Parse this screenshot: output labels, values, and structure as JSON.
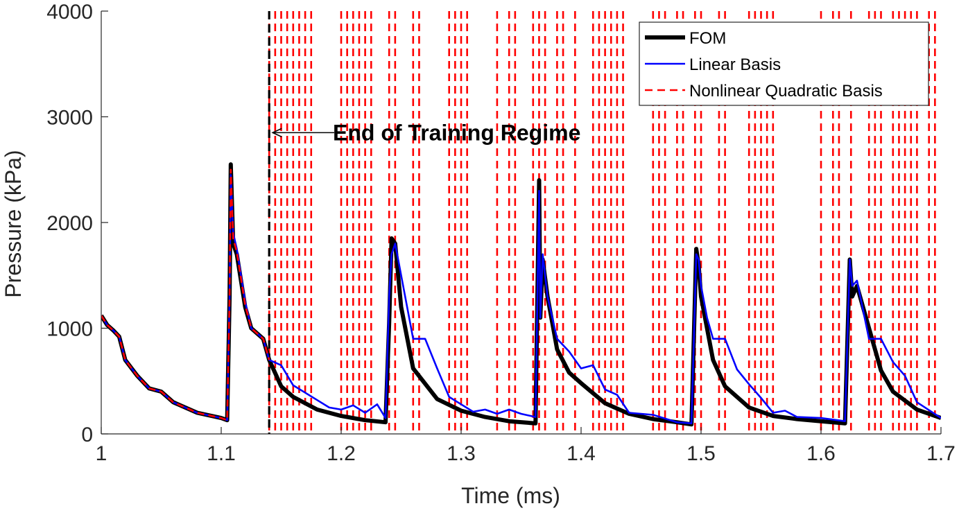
{
  "chart_data": {
    "type": "line",
    "xlabel": "Time (ms)",
    "ylabel": "Pressure (kPa)",
    "xlim": [
      1,
      1.7
    ],
    "ylim": [
      0,
      4000
    ],
    "x_ticks": [
      1,
      1.1,
      1.2,
      1.3,
      1.4,
      1.5,
      1.6,
      1.7
    ],
    "x_tick_labels": [
      "1",
      "1.1",
      "1.2",
      "1.3",
      "1.4",
      "1.5",
      "1.6",
      "1.7"
    ],
    "y_ticks": [
      0,
      1000,
      2000,
      3000,
      4000
    ],
    "y_tick_labels": [
      "0",
      "1000",
      "2000",
      "3000",
      "4000"
    ],
    "grid": false,
    "legend_position": "top-right",
    "series": [
      {
        "name": "FOM",
        "color": "#000000",
        "style": "solid",
        "x": [
          1.0,
          1.005,
          1.01,
          1.015,
          1.02,
          1.03,
          1.04,
          1.05,
          1.06,
          1.08,
          1.1,
          1.105,
          1.107,
          1.108,
          1.11,
          1.113,
          1.12,
          1.125,
          1.13,
          1.135,
          1.14,
          1.15,
          1.16,
          1.18,
          1.2,
          1.22,
          1.237,
          1.24,
          1.242,
          1.245,
          1.25,
          1.26,
          1.28,
          1.3,
          1.32,
          1.34,
          1.362,
          1.365,
          1.366,
          1.368,
          1.372,
          1.38,
          1.39,
          1.4,
          1.42,
          1.44,
          1.46,
          1.48,
          1.492,
          1.496,
          1.498,
          1.5,
          1.505,
          1.51,
          1.52,
          1.54,
          1.56,
          1.58,
          1.6,
          1.62,
          1.624,
          1.626,
          1.63,
          1.64,
          1.65,
          1.66,
          1.68,
          1.7
        ],
        "y": [
          1120,
          1030,
          980,
          920,
          700,
          550,
          430,
          400,
          300,
          200,
          150,
          130,
          1300,
          2550,
          1800,
          1700,
          1200,
          1000,
          950,
          900,
          700,
          450,
          350,
          230,
          170,
          130,
          110,
          1050,
          1850,
          1800,
          1200,
          620,
          330,
          220,
          160,
          120,
          100,
          2400,
          1100,
          1650,
          1300,
          800,
          580,
          480,
          290,
          190,
          140,
          110,
          90,
          1750,
          1600,
          1300,
          1000,
          700,
          450,
          250,
          170,
          140,
          120,
          100,
          1650,
          1300,
          1400,
          1000,
          600,
          400,
          230,
          150
        ]
      },
      {
        "name": "Linear Basis",
        "color": "#0000ff",
        "style": "solid",
        "x": [
          1.0,
          1.005,
          1.01,
          1.015,
          1.02,
          1.03,
          1.04,
          1.05,
          1.06,
          1.08,
          1.1,
          1.105,
          1.107,
          1.108,
          1.11,
          1.113,
          1.12,
          1.125,
          1.13,
          1.135,
          1.14,
          1.15,
          1.16,
          1.18,
          1.19,
          1.2,
          1.21,
          1.22,
          1.23,
          1.237,
          1.24,
          1.242,
          1.245,
          1.25,
          1.26,
          1.27,
          1.28,
          1.29,
          1.3,
          1.31,
          1.32,
          1.33,
          1.34,
          1.35,
          1.362,
          1.365,
          1.366,
          1.368,
          1.372,
          1.38,
          1.39,
          1.4,
          1.41,
          1.42,
          1.43,
          1.44,
          1.46,
          1.48,
          1.492,
          1.496,
          1.498,
          1.5,
          1.505,
          1.51,
          1.52,
          1.53,
          1.54,
          1.55,
          1.56,
          1.57,
          1.58,
          1.6,
          1.62,
          1.624,
          1.626,
          1.63,
          1.64,
          1.65,
          1.66,
          1.67,
          1.68,
          1.7
        ],
        "y": [
          1120,
          1030,
          980,
          920,
          700,
          550,
          430,
          400,
          300,
          200,
          150,
          130,
          1300,
          2450,
          1900,
          1750,
          1250,
          1000,
          950,
          900,
          700,
          650,
          460,
          320,
          250,
          230,
          270,
          200,
          280,
          150,
          1300,
          1700,
          1800,
          1500,
          900,
          900,
          620,
          350,
          280,
          210,
          230,
          190,
          230,
          190,
          160,
          2300,
          1100,
          1700,
          1300,
          900,
          780,
          620,
          650,
          420,
          370,
          200,
          180,
          110,
          100,
          1700,
          1650,
          1400,
          1100,
          900,
          900,
          610,
          470,
          340,
          200,
          220,
          160,
          150,
          120,
          1650,
          1400,
          1450,
          900,
          900,
          680,
          550,
          300,
          150
        ]
      },
      {
        "name": "Nonlinear Quadratic Basis",
        "color": "#ff0000",
        "style": "dashed",
        "x": [
          1.0,
          1.005,
          1.01,
          1.015,
          1.02,
          1.03,
          1.04,
          1.05,
          1.06,
          1.08,
          1.1,
          1.105,
          1.107,
          1.108,
          1.11,
          1.113,
          1.12,
          1.125,
          1.13,
          1.135,
          1.14
        ],
        "y": [
          1120,
          1030,
          980,
          920,
          700,
          550,
          430,
          400,
          300,
          200,
          150,
          130,
          1300,
          2500,
          1850,
          1720,
          1220,
          1000,
          950,
          900,
          700
        ],
        "vertical_lines_x": [
          1.14,
          1.145,
          1.15,
          1.155,
          1.16,
          1.165,
          1.17,
          1.175,
          1.2,
          1.205,
          1.21,
          1.215,
          1.22,
          1.225,
          1.24,
          1.245,
          1.26,
          1.265,
          1.29,
          1.295,
          1.3,
          1.305,
          1.33,
          1.34,
          1.345,
          1.36,
          1.365,
          1.37,
          1.38,
          1.385,
          1.395,
          1.41,
          1.415,
          1.42,
          1.425,
          1.43,
          1.435,
          1.46,
          1.465,
          1.47,
          1.48,
          1.485,
          1.495,
          1.5,
          1.515,
          1.52,
          1.54,
          1.545,
          1.55,
          1.555,
          1.56,
          1.6,
          1.61,
          1.615,
          1.625,
          1.64,
          1.645,
          1.65,
          1.66,
          1.665,
          1.67,
          1.675,
          1.68,
          1.69,
          1.695
        ]
      }
    ],
    "annotations": [
      {
        "text": "End of Training Regime",
        "arrow_to_x": 1.14,
        "arrow_y": 2850,
        "text_x": 1.2,
        "marker_line_x": 1.14,
        "marker_line_color": "#000000"
      }
    ]
  }
}
